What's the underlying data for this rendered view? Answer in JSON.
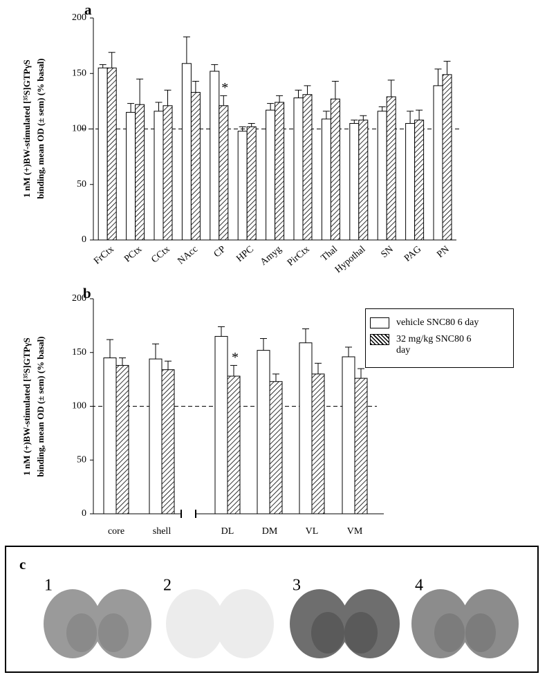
{
  "chart_data": [
    {
      "type": "bar",
      "panel_label": "a",
      "y_label": [
        "1 nM (+)BW-stimulated [³⁵S]GTPγS",
        "binding, mean OD (± sem) (% basal)"
      ],
      "categories": [
        "FrCtx",
        "PCtx",
        "CCtx",
        "NAcc",
        "CP",
        "HPC",
        "Amyg",
        "PirCtx",
        "Thal",
        "Hypothal",
        "SN",
        "PAG",
        "PN"
      ],
      "series": [
        {
          "color": "#ffffff",
          "hatch": false,
          "values": [
            155,
            115,
            116,
            159,
            152,
            98,
            117,
            128,
            109,
            105,
            116,
            105,
            139
          ],
          "errors": [
            3,
            8,
            8,
            24,
            6,
            4,
            6,
            7,
            7,
            3,
            4,
            11,
            15
          ]
        },
        {
          "color": "#ffffff",
          "hatch": true,
          "values": [
            155,
            122,
            121,
            133,
            121,
            102,
            124,
            131,
            127,
            108,
            129,
            108,
            149
          ],
          "errors": [
            14,
            23,
            14,
            10,
            9,
            3,
            6,
            8,
            16,
            4,
            15,
            9,
            12
          ]
        }
      ],
      "annotations": [
        {
          "text": "*",
          "category": "CP"
        }
      ],
      "reference_line": 100,
      "ylim": [
        0,
        200
      ],
      "yticks": [
        0,
        50,
        100,
        150,
        200
      ]
    },
    {
      "type": "bar",
      "panel_label": "b",
      "y_label": [
        "1 nM (+)BW-stimulated [³⁵S]GTPγS",
        "binding, mean OD (± sem) (% basal)"
      ],
      "categories": [
        "core",
        "shell",
        "DL",
        "DM",
        "VL",
        "VM"
      ],
      "series": [
        {
          "name": "vehicle SNC80 6 day",
          "color": "#ffffff",
          "hatch": false,
          "values": [
            145,
            144,
            165,
            152,
            159,
            146
          ],
          "errors": [
            17,
            14,
            9,
            11,
            13,
            9
          ]
        },
        {
          "name": "32 mg/kg SNC80 6 day",
          "color": "#ffffff",
          "hatch": true,
          "values": [
            138,
            134,
            128,
            123,
            130,
            126
          ],
          "errors": [
            7,
            8,
            10,
            7,
            10,
            9
          ]
        }
      ],
      "annotations": [
        {
          "text": "*",
          "category": "DL"
        }
      ],
      "reference_line": 100,
      "legend": "upper right",
      "ylim": [
        0,
        200
      ],
      "yticks": [
        0,
        50,
        100,
        150,
        200
      ]
    }
  ],
  "panel_c": {
    "label": "c",
    "images": [
      "1",
      "2",
      "3",
      "4"
    ]
  }
}
